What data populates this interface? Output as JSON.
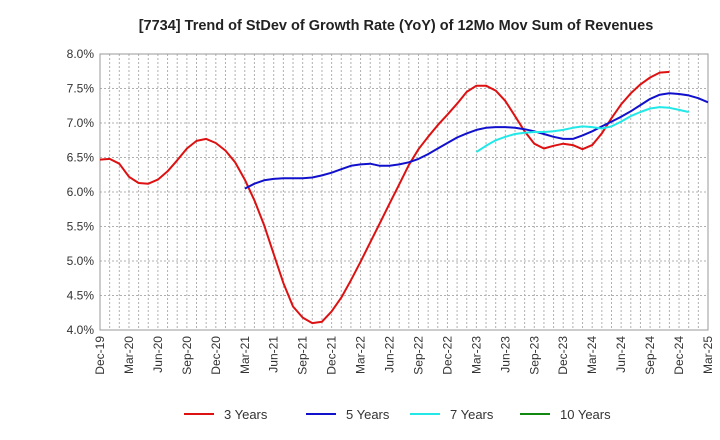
{
  "chart_data": {
    "type": "line",
    "title": "[7734]  Trend of StDev of Growth Rate (YoY) of 12Mo Mov Sum of Revenues",
    "xlabel": "",
    "ylabel": "",
    "ylim": [
      4.0,
      8.0
    ],
    "ytick_values": [
      4.0,
      4.5,
      5.0,
      5.5,
      6.0,
      6.5,
      7.0,
      7.5,
      8.0
    ],
    "ytick_labels": [
      "4.0%",
      "4.5%",
      "5.0%",
      "5.5%",
      "6.0%",
      "6.5%",
      "7.0%",
      "7.5%",
      "8.0%"
    ],
    "xtick_labels": [
      "Dec-19",
      "Mar-20",
      "Jun-20",
      "Sep-20",
      "Dec-20",
      "Mar-21",
      "Jun-21",
      "Sep-21",
      "Dec-21",
      "Mar-22",
      "Jun-22",
      "Sep-22",
      "Dec-22",
      "Mar-23",
      "Jun-23",
      "Sep-23",
      "Dec-23",
      "Mar-24",
      "Jun-24",
      "Sep-24",
      "Dec-24",
      "Mar-25"
    ],
    "x_unit": "months since Dec-19",
    "xlim": [
      0,
      63
    ],
    "grid": true,
    "legend_position": "bottom",
    "series": [
      {
        "name": "3 Years",
        "color": "#dd1111",
        "start": 0,
        "values": [
          6.47,
          6.48,
          6.41,
          6.22,
          6.13,
          6.12,
          6.18,
          6.3,
          6.46,
          6.63,
          6.74,
          6.77,
          6.71,
          6.6,
          6.43,
          6.18,
          5.88,
          5.52,
          5.1,
          4.68,
          4.34,
          4.18,
          4.1,
          4.12,
          4.27,
          4.47,
          4.72,
          4.99,
          5.27,
          5.55,
          5.83,
          6.11,
          6.39,
          6.62,
          6.8,
          6.97,
          7.12,
          7.28,
          7.45,
          7.54,
          7.54,
          7.47,
          7.32,
          7.1,
          6.88,
          6.7,
          6.63,
          6.67,
          6.7,
          6.68,
          6.62,
          6.68,
          6.85,
          7.07,
          7.27,
          7.43,
          7.56,
          7.66,
          7.73,
          7.74
        ]
      },
      {
        "name": "5 Years",
        "color": "#1111cc",
        "start": 15,
        "values": [
          6.05,
          6.12,
          6.17,
          6.19,
          6.2,
          6.2,
          6.2,
          6.21,
          6.24,
          6.28,
          6.33,
          6.38,
          6.4,
          6.41,
          6.38,
          6.38,
          6.4,
          6.43,
          6.48,
          6.55,
          6.63,
          6.71,
          6.79,
          6.85,
          6.9,
          6.93,
          6.94,
          6.94,
          6.93,
          6.91,
          6.88,
          6.84,
          6.8,
          6.77,
          6.77,
          6.82,
          6.88,
          6.95,
          7.02,
          7.09,
          7.17,
          7.26,
          7.35,
          7.41,
          7.43,
          7.42,
          7.4,
          7.36,
          7.3
        ]
      },
      {
        "name": "7 Years",
        "color": "#22e8e8",
        "start": 39,
        "values": [
          6.58,
          6.67,
          6.75,
          6.8,
          6.84,
          6.86,
          6.87,
          6.87,
          6.88,
          6.9,
          6.93,
          6.95,
          6.94,
          6.92,
          6.95,
          7.02,
          7.1,
          7.16,
          7.21,
          7.23,
          7.22,
          7.19,
          7.16
        ]
      },
      {
        "name": "10 Years",
        "color": "#118811",
        "start": 0,
        "values": []
      }
    ]
  }
}
